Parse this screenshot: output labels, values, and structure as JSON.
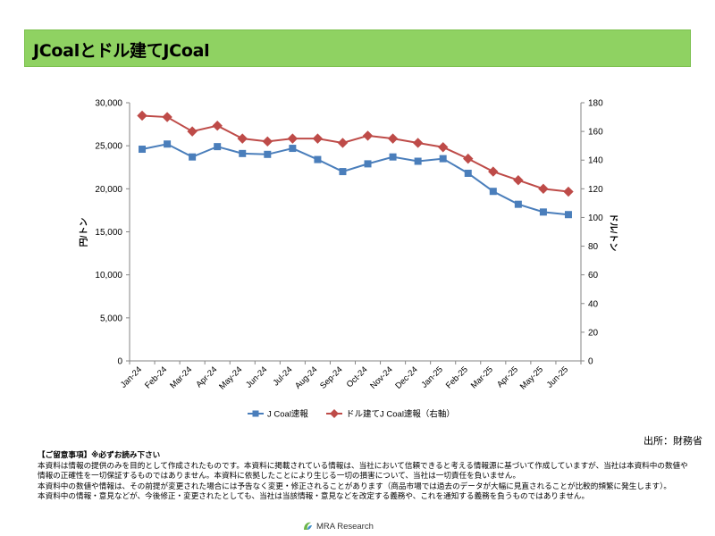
{
  "header": {
    "title": "JCoalとドル建てJCoal"
  },
  "chart_data": {
    "type": "line",
    "categories": [
      "Jan-24",
      "Feb-24",
      "Mar-24",
      "Apr-24",
      "May-24",
      "Jun-24",
      "Jul-24",
      "Aug-24",
      "Sep-24",
      "Oct-24",
      "Nov-24",
      "Dec-24",
      "Jan-25",
      "Feb-25",
      "Mar-25",
      "Apr-25",
      "May-25",
      "Jun-25"
    ],
    "series": [
      {
        "name": "J Coal速報",
        "axis": "left",
        "color": "#4a7ebb",
        "marker": "square",
        "values": [
          24600,
          25200,
          23700,
          24900,
          24100,
          24000,
          24700,
          23400,
          22000,
          22900,
          23700,
          23200,
          23500,
          21800,
          19700,
          18200,
          17300,
          17000
        ]
      },
      {
        "name": "ドル建てJ Coal速報（右軸）",
        "axis": "right",
        "color": "#be4b48",
        "marker": "diamond",
        "values": [
          171,
          170,
          160,
          164,
          155,
          153,
          155,
          155,
          152,
          157,
          155,
          152,
          149,
          141,
          132,
          126,
          120,
          118
        ]
      }
    ],
    "ylabel_left": "円/トン",
    "ylabel_right": "ドル/トン",
    "ylim_left": [
      0,
      30000
    ],
    "ylim_right": [
      0,
      180
    ],
    "yticks_left": [
      "0",
      "5,000",
      "10,000",
      "15,000",
      "20,000",
      "25,000",
      "30,000"
    ],
    "yticks_right": [
      "0",
      "20",
      "40",
      "60",
      "80",
      "100",
      "120",
      "140",
      "160",
      "180"
    ],
    "grid": false,
    "legend_position": "bottom"
  },
  "source": "出所：財務省",
  "notes": {
    "heading": "【ご留意事項】※必ずお読み下さい",
    "lines": [
      "本資料は情報の提供のみを目的として作成されたものです。本資料に掲載されている情報は、当社において信頼できると考える情報源に基づいて作成していますが、当社は本資料中の数値や情報の正確性を一切保証するものではありません。本資料に依拠したことにより生じる一切の損害について、当社は一切責任を負いません。",
      "本資料中の数値や情報は、その前提が変更された場合には予告なく変更・修正されることがあります（商品市場では過去のデータが大幅に見直されることが比較的頻繁に発生します）。",
      "本資料中の情報・意見などが、今後修正・変更されたとしても、当社は当該情報・意見などを改定する義務や、これを通知する義務を負うものではありません。"
    ]
  },
  "logo": {
    "text": "MRA Research"
  }
}
